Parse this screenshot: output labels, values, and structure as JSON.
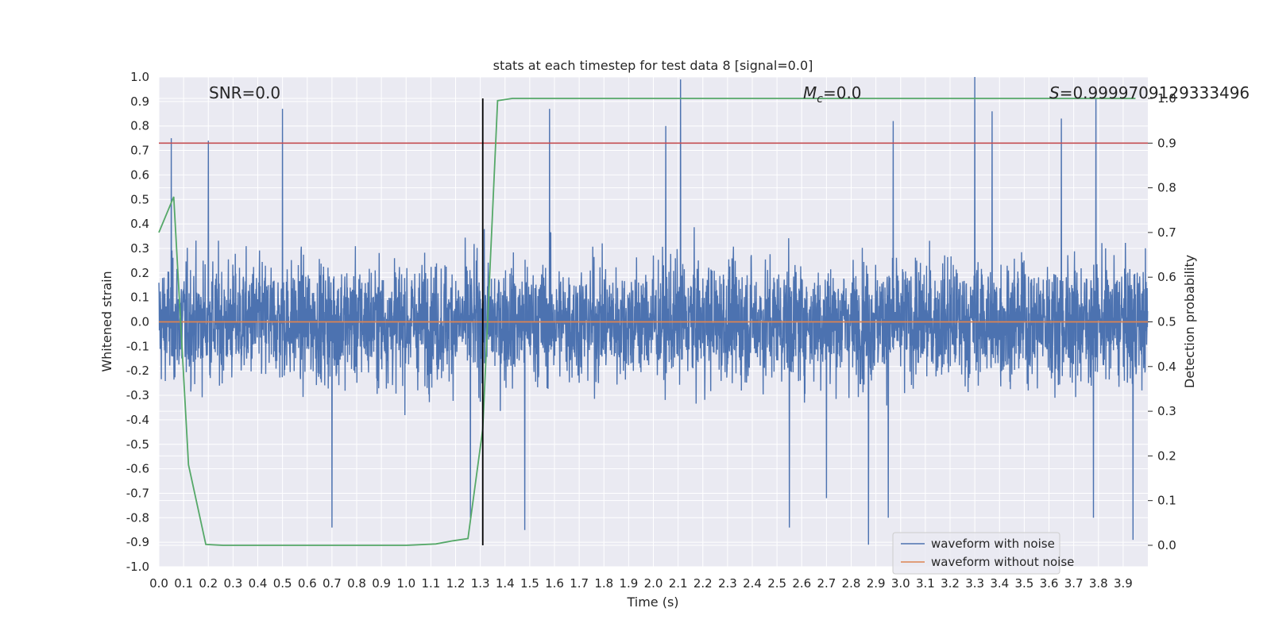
{
  "chart_data": {
    "type": "line",
    "title": "stats at each timestep for test data 8 [signal=0.0]",
    "xlabel": "Time (s)",
    "ylabel": "Whitened strain",
    "y2label": "Detection probability",
    "xlim": [
      0.0,
      4.0
    ],
    "ylim": [
      -1.0,
      1.0
    ],
    "y2lim": [
      -0.048,
      1.048
    ],
    "x_ticks": [
      0.0,
      0.1,
      0.2,
      0.3,
      0.4,
      0.5,
      0.6,
      0.7,
      0.8,
      0.9,
      1.0,
      1.1,
      1.2,
      1.3,
      1.4,
      1.5,
      1.6,
      1.7,
      1.8,
      1.9,
      2.0,
      2.1,
      2.2,
      2.3,
      2.4,
      2.5,
      2.6,
      2.7,
      2.8,
      2.9,
      3.0,
      3.1,
      3.2,
      3.3,
      3.4,
      3.5,
      3.6,
      3.7,
      3.8,
      3.9
    ],
    "y_ticks": [
      -1.0,
      -0.9,
      -0.8,
      -0.7,
      -0.6,
      -0.5,
      -0.4,
      -0.3,
      -0.2,
      -0.1,
      0.0,
      0.1,
      0.2,
      0.3,
      0.4,
      0.5,
      0.6,
      0.7,
      0.8,
      0.9,
      1.0
    ],
    "y2_ticks": [
      0.0,
      0.1,
      0.2,
      0.3,
      0.4,
      0.5,
      0.6,
      0.7,
      0.8,
      0.9,
      1.0
    ],
    "grid": true,
    "legend_position": "bottom-right",
    "annotations": {
      "snr": "SNR=0.0",
      "mc_symbol": "M",
      "mc_subscript": "c",
      "mc_value": "=0.0",
      "s_symbol": "S",
      "s_value": "=0.9999709129333496"
    },
    "series": [
      {
        "name": "waveform with noise",
        "axis": "left",
        "color": "#4c72b0",
        "note_envelope": "dense noise, typical |y| up to ~0.5",
        "peaks": [
          {
            "x": 0.5,
            "y": 0.87
          },
          {
            "x": 1.58,
            "y": 0.87
          },
          {
            "x": 2.11,
            "y": 0.99
          },
          {
            "x": 3.3,
            "y": 1.0
          },
          {
            "x": 3.79,
            "y": 0.91
          },
          {
            "x": 2.05,
            "y": 0.8
          },
          {
            "x": 0.05,
            "y": 0.75
          },
          {
            "x": 0.2,
            "y": 0.74
          },
          {
            "x": 2.97,
            "y": 0.82
          },
          {
            "x": 3.65,
            "y": 0.83
          },
          {
            "x": 3.37,
            "y": 0.86
          }
        ],
        "troughs": [
          {
            "x": 2.87,
            "y": -0.91
          },
          {
            "x": 3.94,
            "y": -0.89
          },
          {
            "x": 0.7,
            "y": -0.84
          },
          {
            "x": 2.55,
            "y": -0.84
          },
          {
            "x": 1.48,
            "y": -0.85
          },
          {
            "x": 1.26,
            "y": -0.8
          },
          {
            "x": 2.95,
            "y": -0.8
          },
          {
            "x": 3.78,
            "y": -0.8
          },
          {
            "x": 2.7,
            "y": -0.72
          }
        ]
      },
      {
        "name": "waveform without noise",
        "axis": "left",
        "color": "#dd8452",
        "x": [
          0.0,
          4.0
        ],
        "y": [
          0.0,
          0.0
        ]
      },
      {
        "axis": "right",
        "color": "#55a868",
        "x": [
          0.0,
          0.06,
          0.12,
          0.19,
          0.26,
          0.45,
          0.7,
          1.0,
          1.12,
          1.19,
          1.25,
          1.31,
          1.37,
          1.43,
          1.6,
          2.0,
          3.0,
          3.95
        ],
        "y": [
          0.7,
          0.78,
          0.18,
          0.002,
          0.0,
          0.0,
          0.0,
          0.0,
          0.003,
          0.01,
          0.015,
          0.26,
          0.995,
          1.0,
          1.0,
          1.0,
          1.0,
          1.0
        ]
      }
    ],
    "threshold_y2": 0.9,
    "threshold_color": "#c44e52",
    "vline_x": 1.31,
    "vline_y2_range": [
      0.0,
      1.0
    ],
    "vline_color": "#000000",
    "colors": {
      "background": "#eaeaf2",
      "grid": "#ffffff"
    }
  }
}
